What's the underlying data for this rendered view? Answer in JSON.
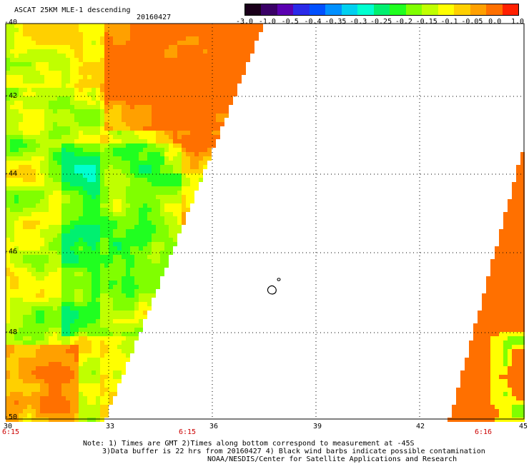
{
  "header": {
    "title": "ASCAT 25KM MLE-1 descending",
    "date": "20160427"
  },
  "colorbar": {
    "colors": [
      "#1a001a",
      "#3a0066",
      "#5a00b0",
      "#2a2ae8",
      "#0050ff",
      "#0090ff",
      "#00d0f0",
      "#00ffd0",
      "#00f070",
      "#20ff20",
      "#80ff00",
      "#c0ff00",
      "#ffff00",
      "#ffd000",
      "#ffa000",
      "#ff7000",
      "#ff2000"
    ],
    "labels": [
      "-3.0",
      "-1.0",
      "-0.5",
      "-0.4",
      "-0.35",
      "-0.3",
      "-0.25",
      "-0.2",
      "-0.15",
      "-0.1",
      "-0.05",
      "0.0",
      "1.0"
    ]
  },
  "axes": {
    "lat_labels": [
      "-40",
      "-42",
      "-44",
      "-46",
      "-48",
      "-50"
    ],
    "lon_labels": [
      "30",
      "33",
      "36",
      "39",
      "42",
      "45"
    ]
  },
  "times": {
    "left": "6:15",
    "middle": "6:15",
    "right": "6:16"
  },
  "footer": {
    "line1": "Note: 1) Times are GMT 2)Times along bottom correspond to measurement at -45S",
    "line2": "3)Data buffer is 22 hrs from 20160427 4) Black wind barbs indicate possible contamination",
    "line3": "NOAA/NESDIS/Center for Satellite Applications and Research"
  }
}
